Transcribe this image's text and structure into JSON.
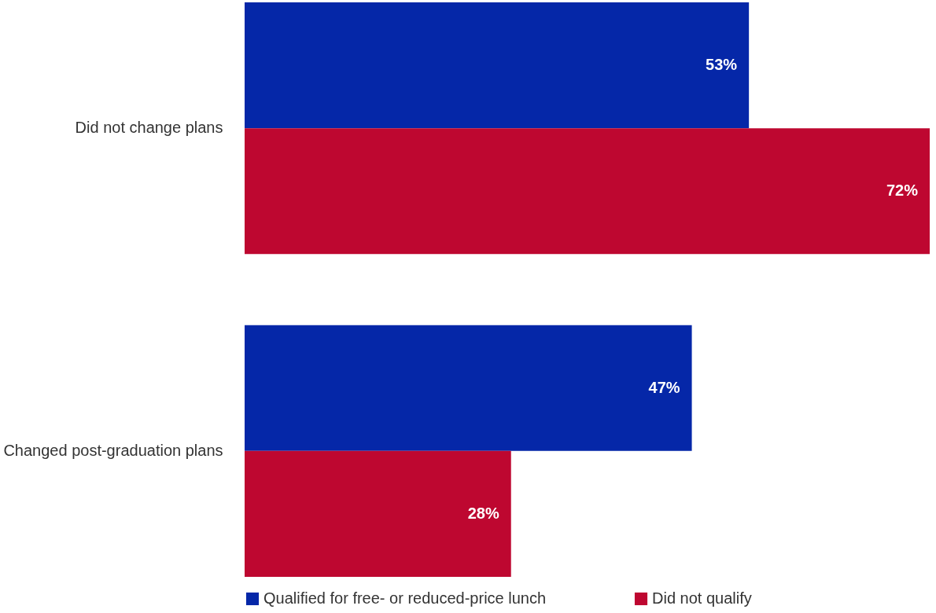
{
  "chart_data": {
    "type": "bar",
    "orientation": "horizontal",
    "categories": [
      "Did not change plans",
      "Changed post-graduation plans"
    ],
    "series": [
      {
        "name": "Qualified for free- or reduced-price lunch",
        "color": "#0527a8",
        "values": [
          53,
          47
        ],
        "value_labels": [
          "53%",
          "47%"
        ]
      },
      {
        "name": "Did not qualify",
        "color": "#be0730",
        "values": [
          72,
          28
        ],
        "value_labels": [
          "72%",
          "28%"
        ]
      }
    ],
    "legend": "bottom"
  }
}
